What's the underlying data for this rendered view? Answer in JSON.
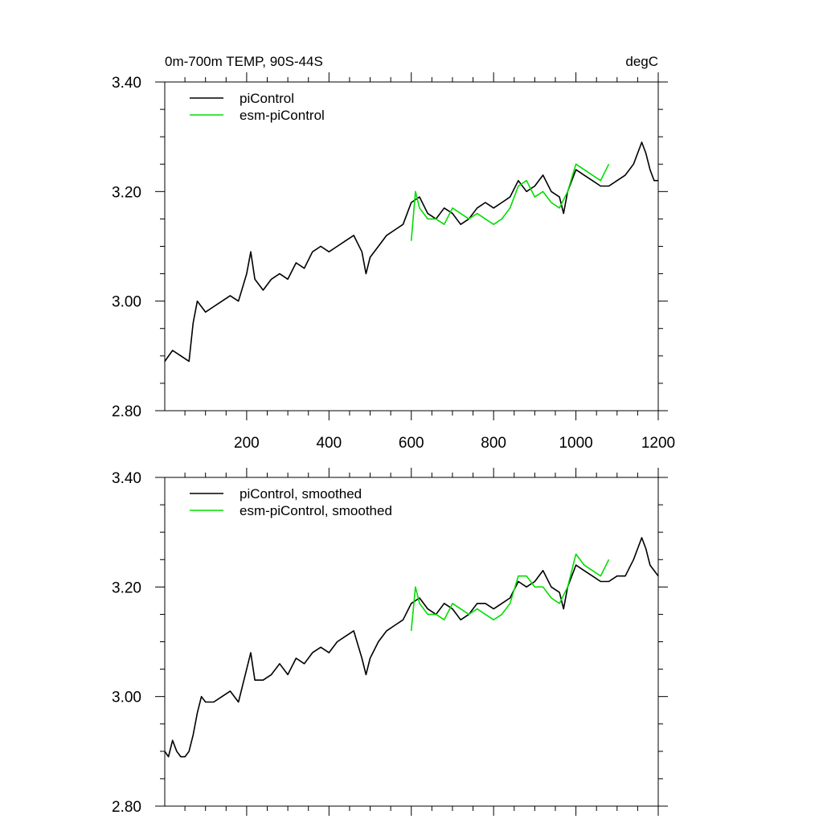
{
  "chart_data": [
    {
      "type": "line",
      "title_left": "0m-700m TEMP, 90S-44S",
      "title_right": "degC",
      "xlim": [
        1,
        1200
      ],
      "ylim": [
        2.8,
        3.4
      ],
      "xticks": [
        200,
        400,
        600,
        800,
        1000,
        1200
      ],
      "xtick_labels": [
        "200",
        "400",
        "600",
        "800",
        "1000",
        "1200"
      ],
      "yticks": [
        2.8,
        3.0,
        3.2,
        3.4
      ],
      "ytick_labels": [
        "2.80",
        "3.00",
        "3.20",
        "3.40"
      ],
      "legend_position": "top-left",
      "series": [
        {
          "name": "piControl",
          "color": "#000000",
          "x": [
            1,
            20,
            40,
            60,
            70,
            80,
            100,
            120,
            140,
            160,
            180,
            200,
            210,
            220,
            240,
            260,
            280,
            300,
            320,
            340,
            360,
            380,
            400,
            420,
            440,
            460,
            480,
            490,
            500,
            520,
            540,
            560,
            580,
            600,
            620,
            640,
            660,
            680,
            700,
            720,
            740,
            760,
            780,
            800,
            820,
            840,
            860,
            880,
            900,
            920,
            940,
            960,
            970,
            980,
            1000,
            1020,
            1040,
            1060,
            1080,
            1100,
            1120,
            1140,
            1160,
            1170,
            1180,
            1190,
            1200
          ],
          "y": [
            2.89,
            2.91,
            2.9,
            2.89,
            2.96,
            3.0,
            2.98,
            2.99,
            3.0,
            3.01,
            3.0,
            3.05,
            3.09,
            3.04,
            3.02,
            3.04,
            3.05,
            3.04,
            3.07,
            3.06,
            3.09,
            3.1,
            3.09,
            3.1,
            3.11,
            3.12,
            3.09,
            3.05,
            3.08,
            3.1,
            3.12,
            3.13,
            3.14,
            3.18,
            3.19,
            3.16,
            3.15,
            3.17,
            3.16,
            3.14,
            3.15,
            3.17,
            3.18,
            3.17,
            3.18,
            3.19,
            3.22,
            3.2,
            3.21,
            3.23,
            3.2,
            3.19,
            3.16,
            3.2,
            3.24,
            3.23,
            3.22,
            3.21,
            3.21,
            3.22,
            3.23,
            3.25,
            3.29,
            3.27,
            3.24,
            3.22,
            3.22
          ]
        },
        {
          "name": "esm-piControl",
          "color": "#00dd00",
          "x": [
            600,
            610,
            620,
            640,
            660,
            680,
            700,
            720,
            740,
            760,
            780,
            800,
            820,
            840,
            860,
            880,
            900,
            920,
            940,
            960,
            980,
            1000,
            1020,
            1040,
            1060,
            1080
          ],
          "y": [
            3.11,
            3.2,
            3.17,
            3.15,
            3.15,
            3.14,
            3.17,
            3.16,
            3.15,
            3.16,
            3.15,
            3.14,
            3.15,
            3.17,
            3.21,
            3.22,
            3.19,
            3.2,
            3.18,
            3.17,
            3.2,
            3.25,
            3.24,
            3.23,
            3.22,
            3.25
          ]
        }
      ]
    },
    {
      "type": "line",
      "xlim": [
        1,
        1200
      ],
      "ylim": [
        2.8,
        3.4
      ],
      "xticks": [
        200,
        400,
        600,
        800,
        1000,
        1200
      ],
      "yticks": [
        2.8,
        3.0,
        3.2,
        3.4
      ],
      "ytick_labels": [
        "2.80",
        "3.00",
        "3.20",
        "3.40"
      ],
      "legend_position": "top-left",
      "series": [
        {
          "name": "piControl, smoothed",
          "color": "#000000",
          "x": [
            1,
            10,
            20,
            30,
            40,
            50,
            60,
            70,
            80,
            90,
            100,
            120,
            140,
            160,
            180,
            200,
            210,
            220,
            240,
            260,
            280,
            300,
            320,
            340,
            360,
            380,
            400,
            420,
            440,
            460,
            480,
            490,
            500,
            520,
            540,
            560,
            580,
            600,
            620,
            640,
            660,
            680,
            700,
            720,
            740,
            760,
            780,
            800,
            820,
            840,
            860,
            880,
            900,
            920,
            940,
            960,
            970,
            980,
            1000,
            1020,
            1040,
            1060,
            1080,
            1100,
            1120,
            1140,
            1160,
            1170,
            1180,
            1190,
            1200
          ],
          "y": [
            2.9,
            2.89,
            2.92,
            2.9,
            2.89,
            2.89,
            2.9,
            2.93,
            2.97,
            3.0,
            2.99,
            2.99,
            3.0,
            3.01,
            2.99,
            3.05,
            3.08,
            3.03,
            3.03,
            3.04,
            3.06,
            3.04,
            3.07,
            3.06,
            3.08,
            3.09,
            3.08,
            3.1,
            3.11,
            3.12,
            3.07,
            3.04,
            3.07,
            3.1,
            3.12,
            3.13,
            3.14,
            3.17,
            3.18,
            3.16,
            3.15,
            3.17,
            3.16,
            3.14,
            3.15,
            3.17,
            3.17,
            3.16,
            3.17,
            3.18,
            3.21,
            3.2,
            3.21,
            3.23,
            3.2,
            3.19,
            3.16,
            3.2,
            3.24,
            3.23,
            3.22,
            3.21,
            3.21,
            3.22,
            3.22,
            3.25,
            3.29,
            3.27,
            3.24,
            3.23,
            3.22
          ]
        },
        {
          "name": "esm-piControl, smoothed",
          "color": "#00dd00",
          "x": [
            600,
            610,
            620,
            640,
            660,
            680,
            700,
            720,
            740,
            760,
            780,
            800,
            820,
            840,
            860,
            880,
            900,
            920,
            940,
            960,
            980,
            1000,
            1020,
            1040,
            1060,
            1080
          ],
          "y": [
            3.12,
            3.2,
            3.17,
            3.15,
            3.15,
            3.14,
            3.17,
            3.16,
            3.15,
            3.16,
            3.15,
            3.14,
            3.15,
            3.17,
            3.22,
            3.22,
            3.2,
            3.2,
            3.18,
            3.17,
            3.2,
            3.26,
            3.24,
            3.23,
            3.22,
            3.25
          ]
        }
      ]
    }
  ]
}
